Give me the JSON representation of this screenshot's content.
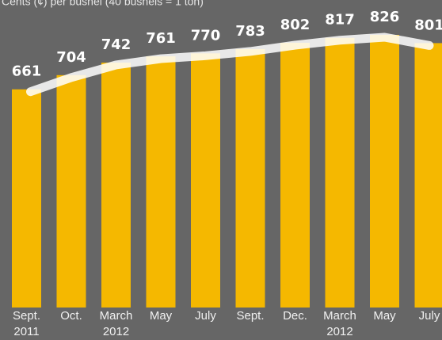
{
  "chart_data": {
    "type": "bar",
    "subtitle": "Cents (¢) per bushel (40 bushels = 1 ton)",
    "categories": [
      "Sept.",
      "Oct.",
      "March",
      "May",
      "July",
      "Sept.",
      "Dec.",
      "March",
      "May",
      "July"
    ],
    "category_years": [
      "2011",
      null,
      "2012",
      null,
      null,
      null,
      null,
      "2012",
      null,
      null
    ],
    "values": [
      661,
      704,
      742,
      761,
      770,
      783,
      802,
      817,
      826,
      801
    ],
    "color": "#f5b800",
    "line_color": "#ffffff"
  }
}
